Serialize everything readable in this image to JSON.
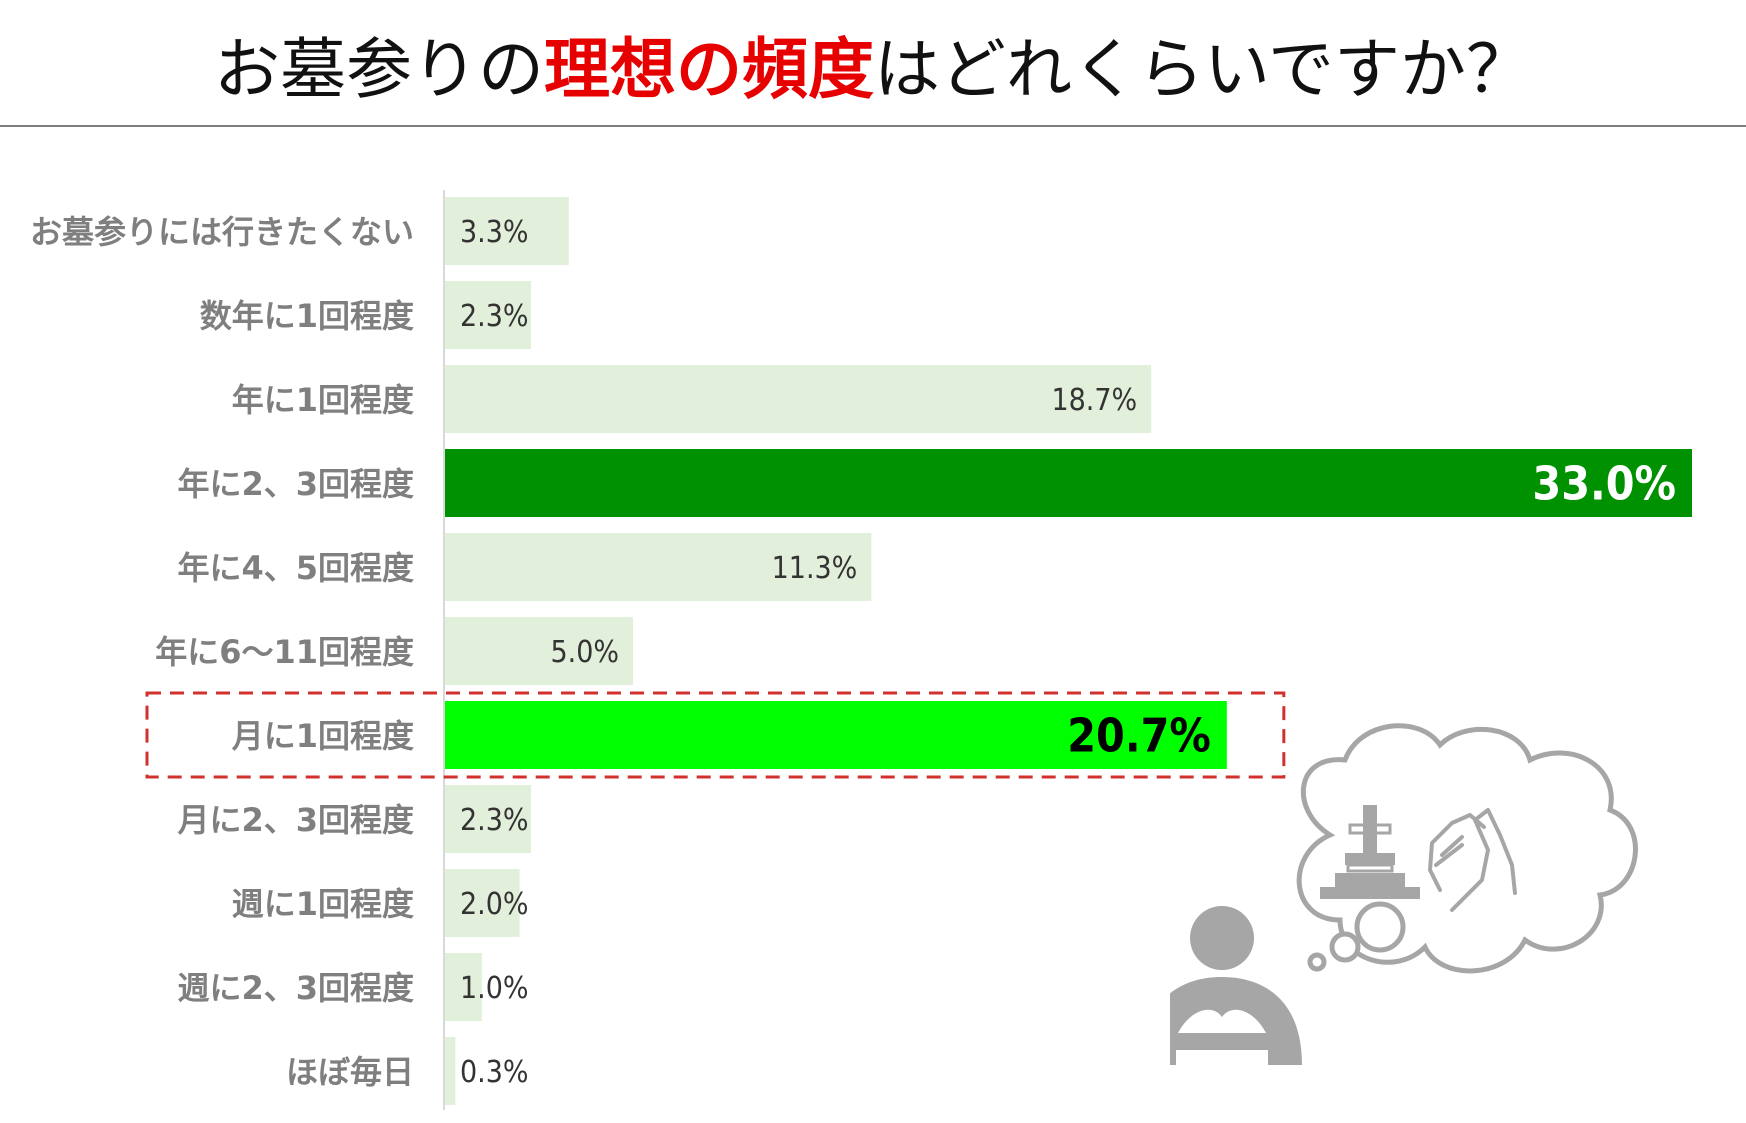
{
  "title": {
    "prefix": "お墓参りの",
    "highlight": "理想の頻度",
    "suffix": "はどれくらいですか？",
    "highlight_color": "#e60000"
  },
  "colors": {
    "bar_default": "#e2efda",
    "bar_top": "#009100",
    "bar_focus": "#00ff00",
    "callout_border": "#d0312d",
    "category_text": "#7f7f7f",
    "axis": "#d9d9d9",
    "illustration": "#a6a6a6"
  },
  "chart_data": {
    "type": "bar",
    "orientation": "horizontal",
    "title": "お墓参りの理想の頻度はどれくらいですか？",
    "xlim": [
      0,
      33.0
    ],
    "grid": false,
    "legend": "none",
    "categories": [
      "お墓参りには行きたくない",
      "数年に1回程度",
      "年に1回程度",
      "年に2、3回程度",
      "年に4、5回程度",
      "年に6～11回程度",
      "月に1回程度",
      "月に2、3回程度",
      "週に1回程度",
      "週に2、3回程度",
      "ほぼ毎日"
    ],
    "values": [
      3.3,
      2.3,
      18.7,
      33.0,
      11.3,
      5.0,
      20.7,
      2.3,
      2.0,
      1.0,
      0.3
    ],
    "labels": [
      "3.3%",
      "2.3%",
      "18.7%",
      "33.0%",
      "11.3%",
      "5.0%",
      "20.7%",
      "2.3%",
      "2.0%",
      "1.0%",
      "0.3%"
    ],
    "emphasis": {
      "top_category": "年に2、3回程度",
      "highlighted_category": "月に1回程度"
    }
  },
  "illustration": {
    "icons": [
      "person-praying-icon",
      "thought-bubble-icon",
      "gravestone-icon",
      "praying-hands-icon"
    ]
  }
}
